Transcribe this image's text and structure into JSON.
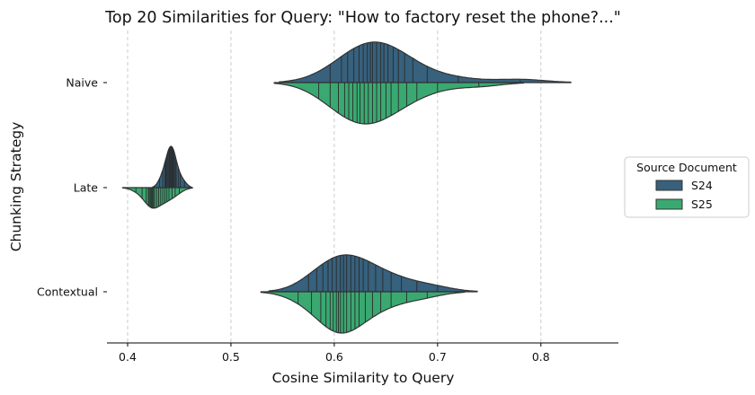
{
  "chart_data": {
    "type": "violin",
    "title": "Top 20 Similarities for Query: \"How to factory reset the phone?...\"",
    "xlabel": "Cosine Similarity to Query",
    "ylabel": "Chunking Strategy",
    "xlim": [
      0.38,
      0.875
    ],
    "xticks": [
      "0.4",
      "0.5",
      "0.6",
      "0.7",
      "0.8"
    ],
    "categories": [
      "Naive",
      "Late",
      "Contextual"
    ],
    "grid": "x dashed",
    "legend": {
      "title": "Source Document",
      "placement": "right"
    },
    "colors": {
      "S24": "#37617d",
      "S25": "#3aa971",
      "outline": "#333333"
    },
    "series": [
      {
        "name": "S24",
        "values": [
          [
            0.596,
            0.607,
            0.613,
            0.619,
            0.624,
            0.628,
            0.632,
            0.635,
            0.637,
            0.641,
            0.645,
            0.648,
            0.652,
            0.657,
            0.662,
            0.668,
            0.676,
            0.69,
            0.72,
            0.78
          ],
          [
            0.431,
            0.434,
            0.436,
            0.437,
            0.438,
            0.439,
            0.44,
            0.441,
            0.441,
            0.442,
            0.442,
            0.443,
            0.444,
            0.444,
            0.445,
            0.446,
            0.447,
            0.449,
            0.451,
            0.455
          ],
          [
            0.575,
            0.583,
            0.589,
            0.594,
            0.598,
            0.602,
            0.606,
            0.609,
            0.612,
            0.616,
            0.62,
            0.624,
            0.628,
            0.633,
            0.64,
            0.647,
            0.655,
            0.665,
            0.68,
            0.7
          ]
        ]
      },
      {
        "name": "S25",
        "values": [
          [
            0.585,
            0.596,
            0.604,
            0.61,
            0.614,
            0.618,
            0.622,
            0.625,
            0.629,
            0.633,
            0.637,
            0.641,
            0.645,
            0.65,
            0.655,
            0.662,
            0.67,
            0.68,
            0.7,
            0.74
          ],
          [
            0.408,
            0.414,
            0.418,
            0.42,
            0.421,
            0.422,
            0.423,
            0.424,
            0.425,
            0.426,
            0.428,
            0.43,
            0.432,
            0.434,
            0.436,
            0.438,
            0.44,
            0.443,
            0.446,
            0.45
          ],
          [
            0.565,
            0.578,
            0.587,
            0.592,
            0.596,
            0.599,
            0.602,
            0.604,
            0.606,
            0.609,
            0.612,
            0.616,
            0.62,
            0.624,
            0.63,
            0.637,
            0.645,
            0.655,
            0.67,
            0.69
          ]
        ]
      }
    ]
  }
}
